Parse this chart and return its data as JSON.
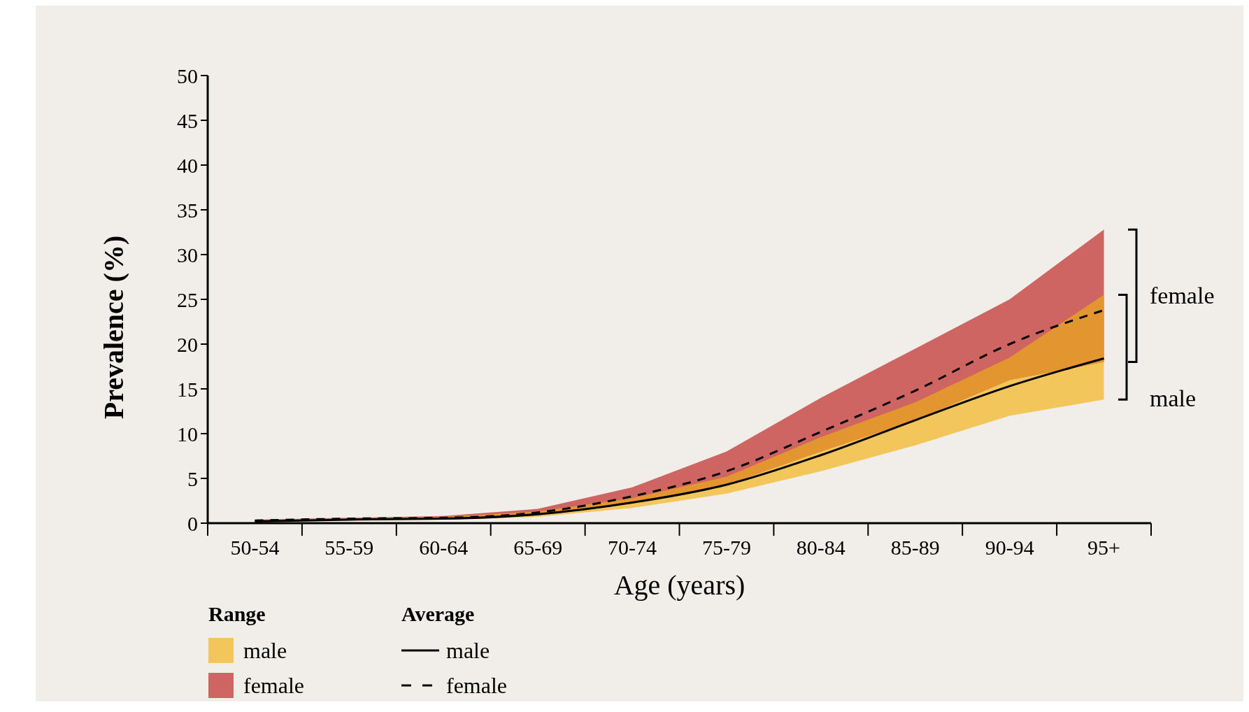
{
  "chart_data": {
    "type": "line",
    "xlabel": "Age (years)",
    "ylabel": "Prevalence (%)",
    "legend_title": "Average",
    "categories": [
      "50-54",
      "55-59",
      "60-64",
      "65-69",
      "70-74",
      "75-79",
      "80-84",
      "85-89",
      "90-94",
      "95+"
    ],
    "ylim": [
      0,
      50
    ],
    "yticks": [
      0,
      5,
      10,
      15,
      20,
      25,
      30,
      35,
      40,
      45,
      50
    ],
    "legend": "bottom left",
    "grid": false,
    "series": [
      {
        "name": "male",
        "color": "#000000",
        "colors": [
          "#f3c65c",
          "#f3c65c",
          "#f3c65c",
          "#f3c65c",
          "#f3c65c",
          "#f3c65c",
          "#f3c65c",
          "#f3c65c",
          "#f3c65c",
          "#f3c65c"
        ],
        "line_style": "solid",
        "values": [
          0.2,
          0.4,
          0.5,
          1.0,
          2.3,
          4.3,
          7.6,
          11.5,
          15.3,
          18.4
        ],
        "lower": [
          0.1,
          0.3,
          0.4,
          0.7,
          1.7,
          3.3,
          5.8,
          8.7,
          12.0,
          13.8
        ],
        "upper": [
          0.3,
          0.5,
          0.7,
          1.3,
          2.8,
          5.2,
          9.6,
          13.5,
          18.5,
          25.5
        ]
      },
      {
        "name": "female",
        "color": "#000000",
        "colors": [
          "#cf6563",
          "#cf6563",
          "#cf6563",
          "#cf6563",
          "#cf6563",
          "#cf6563",
          "#cf6563",
          "#cf6563",
          "#cf6563",
          "#cf6563"
        ],
        "line_style": "dashed",
        "values": [
          0.3,
          0.5,
          0.6,
          1.2,
          3.0,
          5.8,
          10.2,
          14.8,
          20.0,
          23.8
        ],
        "lower": [
          0.2,
          0.4,
          0.5,
          1.0,
          2.2,
          4.3,
          8.0,
          11.5,
          16.0,
          18.0
        ],
        "upper": [
          0.4,
          0.6,
          0.8,
          1.6,
          4.0,
          8.0,
          14.0,
          19.5,
          25.0,
          32.8
        ]
      }
    ],
    "annotations": [
      "Range",
      {
        "text": "female",
        "x": "95+",
        "y": 25.5
      },
      {
        "text": "male",
        "x": "95+",
        "y": 14
      }
    ]
  }
}
